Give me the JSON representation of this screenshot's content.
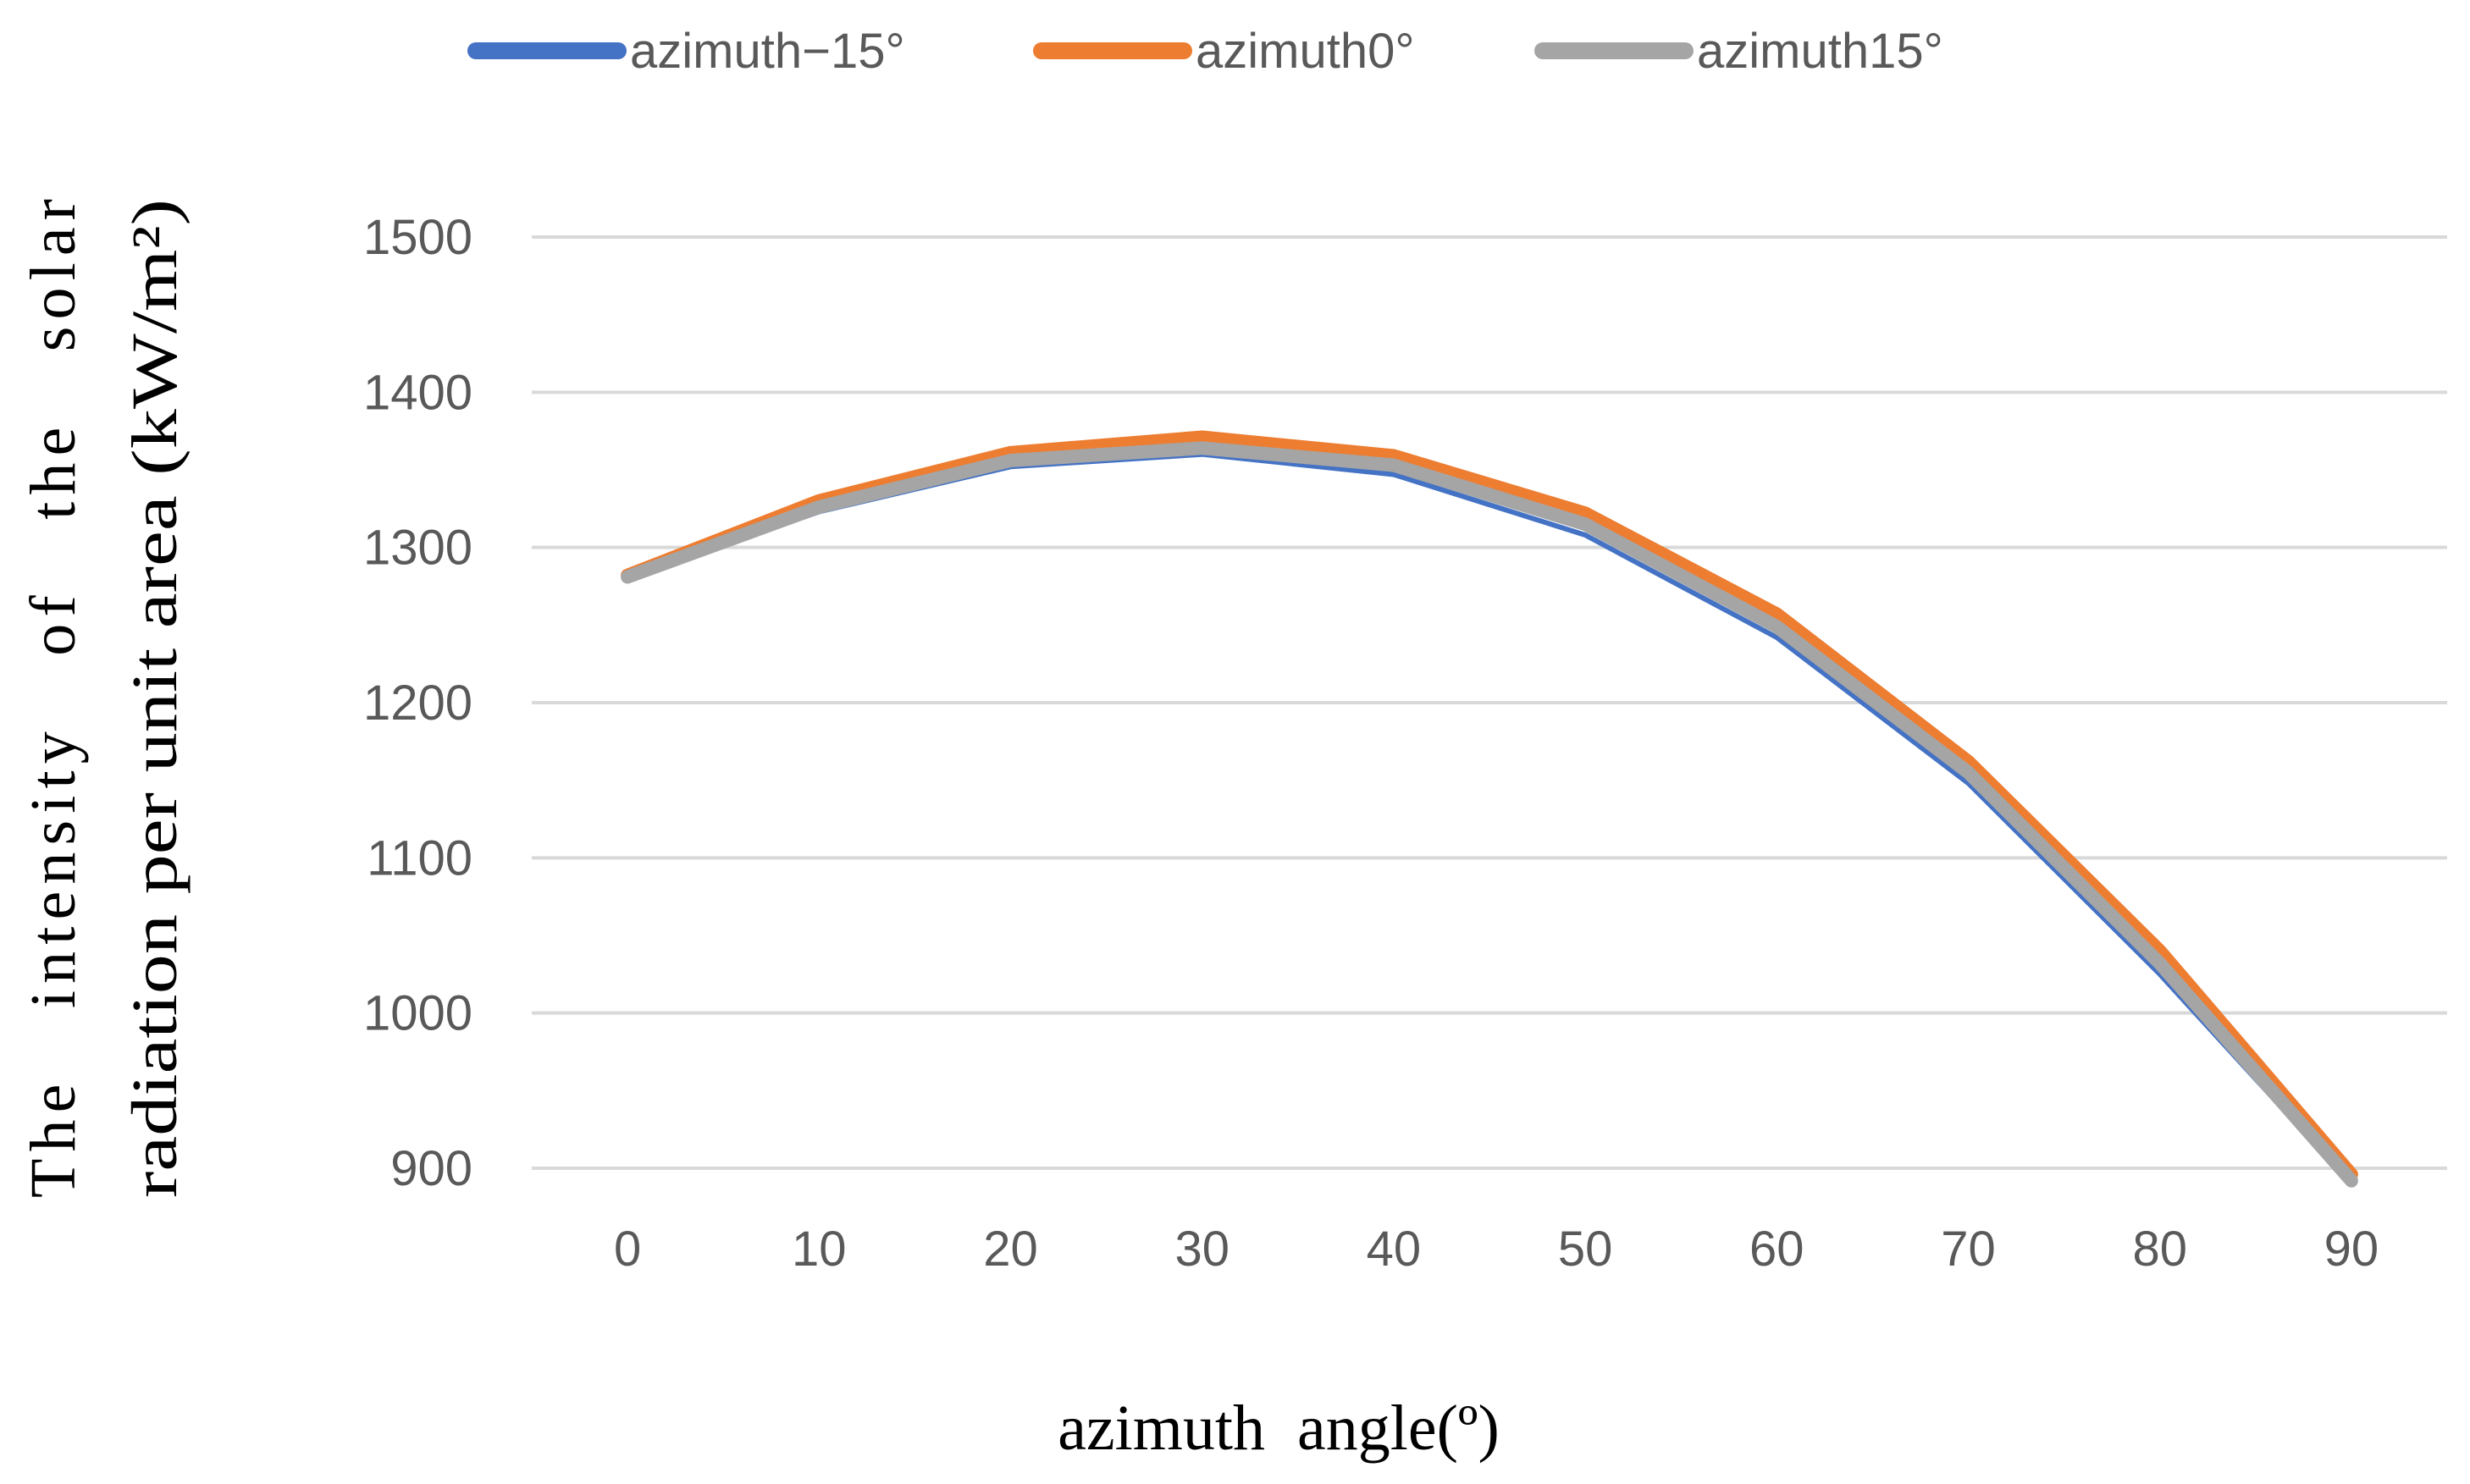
{
  "chart_data": {
    "type": "line",
    "categories": [
      "0",
      "10",
      "20",
      "30",
      "40",
      "50",
      "60",
      "70",
      "80",
      "90"
    ],
    "series": [
      {
        "name": "azimuth−15°",
        "color": "#4472c4",
        "values": [
          1280,
          1323,
          1352,
          1360,
          1347,
          1308,
          1242,
          1148,
          1025,
          890
        ]
      },
      {
        "name": "azimuth0°",
        "color": "#ed7d31",
        "values": [
          1282,
          1330,
          1361,
          1371,
          1359,
          1322,
          1257,
          1162,
          1040,
          896
        ]
      },
      {
        "name": "azimuth15°",
        "color": "#a5a5a5",
        "values": [
          1281,
          1326,
          1356,
          1364,
          1353,
          1315,
          1249,
          1155,
          1032,
          892
        ]
      }
    ],
    "y_ticks": [
      "1500",
      "1400",
      "1300",
      "1200",
      "1100",
      "1000",
      "900"
    ],
    "ylim": [
      900,
      1500
    ],
    "xlabel": "azimuth  angle(º)",
    "ylabel_line1": "The   intensity   of   the   solar",
    "ylabel_line2": "radiation per unit area (kW/m²)",
    "legend_position": "top",
    "grid": true
  }
}
